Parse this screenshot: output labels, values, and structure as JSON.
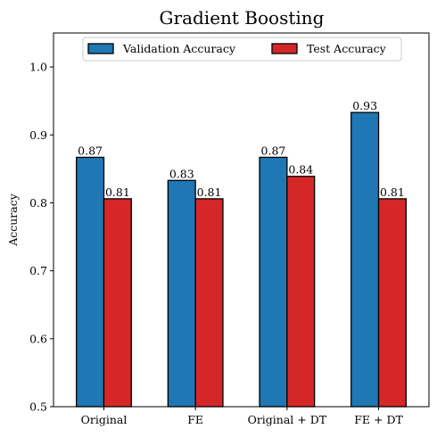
{
  "chart_data": {
    "type": "bar",
    "title": "Gradient Boosting",
    "xlabel": "",
    "ylabel": "Accuracy",
    "categories": [
      "Original",
      "FE",
      "Original + DT",
      "FE + DT"
    ],
    "series": [
      {
        "name": "Validation Accuracy",
        "values": [
          0.867,
          0.833,
          0.867,
          0.933
        ],
        "labels": [
          "0.87",
          "0.83",
          "0.87",
          "0.93"
        ],
        "color": "#1f77b4"
      },
      {
        "name": "Test Accuracy",
        "values": [
          0.806,
          0.806,
          0.839,
          0.806
        ],
        "labels": [
          "0.81",
          "0.81",
          "0.84",
          "0.81"
        ],
        "color": "#d62728"
      }
    ],
    "ylim": [
      0.5,
      1.05
    ],
    "yticks": [
      0.5,
      0.6,
      0.7,
      0.8,
      0.9,
      1.0
    ],
    "ytick_labels": [
      "0.5",
      "0.6",
      "0.7",
      "0.8",
      "0.9",
      "1.0"
    ],
    "legend_position": "top-center",
    "grid": false
  }
}
